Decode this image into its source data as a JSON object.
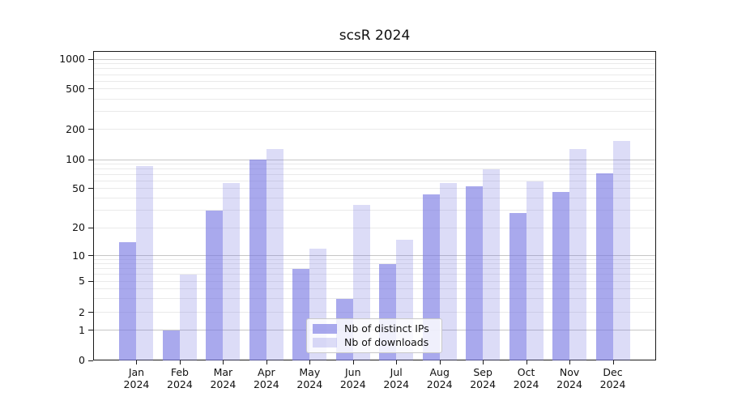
{
  "title": "scsR 2024",
  "legend": {
    "items": [
      {
        "label": "Nb of distinct IPs",
        "color": "rgba(119,119,226,0.63)"
      },
      {
        "label": "Nb of downloads",
        "color": "rgba(119,119,226,0.26)"
      }
    ]
  },
  "colors": {
    "background": "#ffffff",
    "spine": "#1a1a1a",
    "major_grid": "#c6c6c6",
    "minor_grid": "#eaeaea",
    "bar_base": "#7777e2"
  },
  "chart_data": {
    "type": "bar",
    "title": "scsR 2024",
    "categories": [
      "Jan",
      "Feb",
      "Mar",
      "Apr",
      "May",
      "Jun",
      "Jul",
      "Aug",
      "Sep",
      "Oct",
      "Nov",
      "Dec"
    ],
    "category_year": "2024",
    "series": [
      {
        "name": "Nb of distinct IPs",
        "color": "rgba(119,119,226,0.63)",
        "values": [
          14,
          1,
          30,
          100,
          7,
          3,
          8,
          44,
          53,
          28,
          46,
          72
        ]
      },
      {
        "name": "Nb of downloads",
        "color": "rgba(119,119,226,0.26)",
        "values": [
          85,
          6,
          57,
          127,
          12,
          34,
          15,
          57,
          80,
          60,
          127,
          155
        ]
      }
    ],
    "xlabel": "",
    "ylabel": "",
    "yticks": [
      0,
      1,
      2,
      5,
      10,
      20,
      50,
      100,
      200,
      500,
      1000
    ],
    "yaxis_scale": "log-like (linear 0-1, log above)",
    "ylim": [
      0,
      1200
    ],
    "grid": "horizontal, log minor gridlines",
    "legend_position": "lower center"
  }
}
